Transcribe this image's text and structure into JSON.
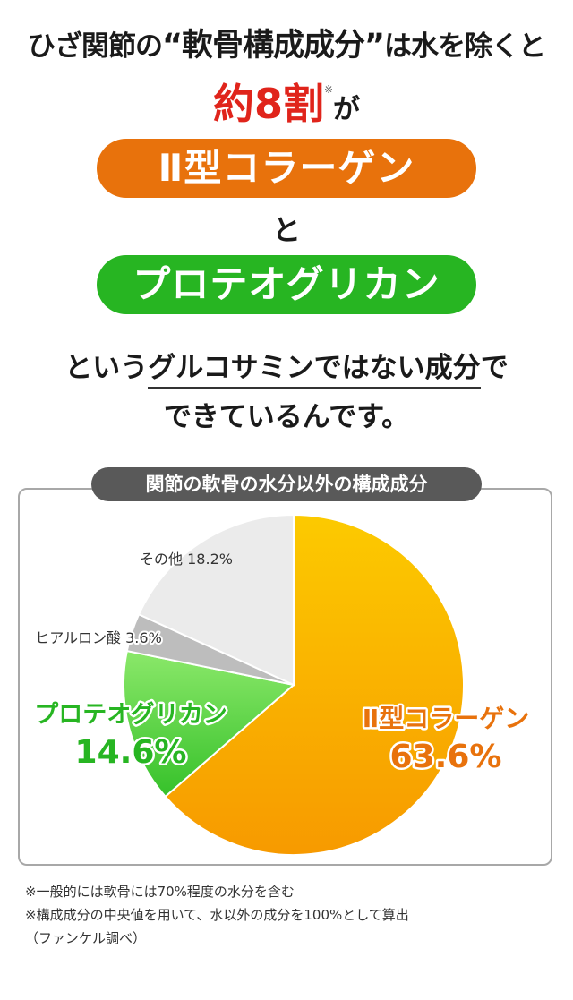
{
  "headline": {
    "line1_pre": "ひざ関節の",
    "line1_quote": "“軟骨構成成分”",
    "line1_post": "は水を除くと",
    "line2_value": "約8割",
    "line2_mark": "※",
    "line2_post": "が",
    "pill1": "Ⅱ型コラーゲン",
    "connector": "と",
    "pill2": "プロテオグリカン",
    "line4_pre": "という",
    "line4_emph": "グルコサミンではない成分",
    "line4_post": "で",
    "line5": "できているんです。"
  },
  "colors": {
    "red": "#e0241b",
    "orange": "#e8720c",
    "green": "#27b522",
    "collagen_slice": "#fbb000",
    "proteo_slice": "#6fd84e",
    "hyaluronic_slice": "#bdbdbd",
    "other_slice": "#ebebeb"
  },
  "chart_data": {
    "type": "pie",
    "title": "関節の軟骨の水分以外の構成成分",
    "slices": [
      {
        "name": "Ⅱ型コラーゲン",
        "value": 63.6,
        "value_label": "63.6%"
      },
      {
        "name": "プロテオグリカン",
        "value": 14.6,
        "value_label": "14.6%"
      },
      {
        "name": "ヒアルロン酸",
        "value": 3.6,
        "value_label": "3.6%"
      },
      {
        "name": "その他",
        "value": 18.2,
        "value_label": "18.2%"
      }
    ]
  },
  "notes": [
    "※一般的には軟骨には70%程度の水分を含む",
    "※構成成分の中央値を用いて、水以外の成分を100%として算出",
    "（ファンケル調べ）"
  ]
}
